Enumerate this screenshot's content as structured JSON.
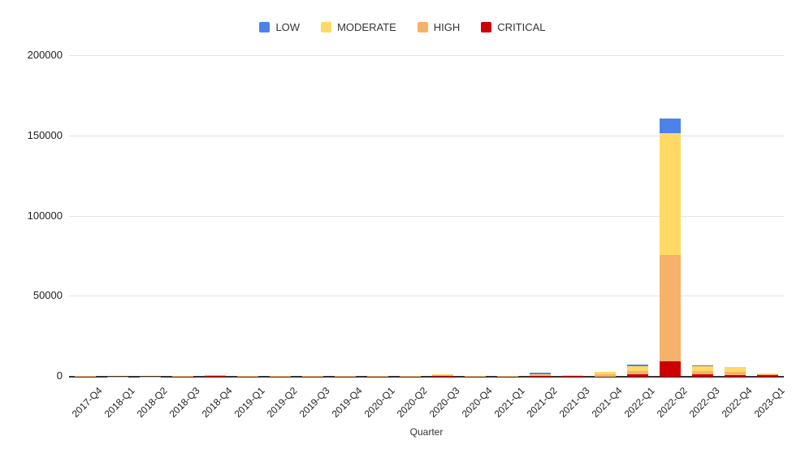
{
  "chart_data": {
    "type": "bar",
    "stacked": true,
    "title": "",
    "xlabel": "Quarter",
    "ylabel": "",
    "ylim": [
      0,
      200000
    ],
    "yticks": [
      0,
      50000,
      100000,
      150000,
      200000
    ],
    "grid": true,
    "legend_position": "top",
    "categories": [
      "2017-Q4",
      "2018-Q1",
      "2018-Q2",
      "2018-Q3",
      "2018-Q4",
      "2019-Q1",
      "2019-Q2",
      "2019-Q3",
      "2019-Q4",
      "2020-Q1",
      "2020-Q2",
      "2020-Q3",
      "2020-Q4",
      "2021-Q1",
      "2021-Q2",
      "2021-Q3",
      "2021-Q4",
      "2022-Q1",
      "2022-Q2",
      "2022-Q3",
      "2022-Q4",
      "2023-Q1"
    ],
    "series": [
      {
        "name": "LOW",
        "color": "#4d82e8",
        "values": [
          0,
          0,
          0,
          0,
          0,
          0,
          0,
          0,
          0,
          0,
          0,
          0,
          0,
          0,
          1000,
          0,
          0,
          800,
          9000,
          700,
          0,
          0
        ]
      },
      {
        "name": "MODERATE",
        "color": "#ffd966",
        "values": [
          300,
          0,
          100,
          100,
          0,
          0,
          0,
          0,
          0,
          0,
          0,
          600,
          0,
          0,
          500,
          500,
          1900,
          3000,
          76000,
          3100,
          3100,
          400
        ]
      },
      {
        "name": "HIGH",
        "color": "#f6b26b",
        "values": [
          300,
          100,
          100,
          400,
          400,
          400,
          400,
          350,
          400,
          400,
          450,
          100,
          400,
          400,
          400,
          300,
          1400,
          2100,
          66500,
          2000,
          2300,
          400
        ]
      },
      {
        "name": "CRITICAL",
        "color": "#cc0000",
        "values": [
          0,
          0,
          0,
          0,
          500,
          0,
          0,
          0,
          0,
          0,
          0,
          700,
          0,
          0,
          600,
          400,
          0,
          1500,
          9500,
          1400,
          900,
          1000
        ]
      }
    ]
  }
}
